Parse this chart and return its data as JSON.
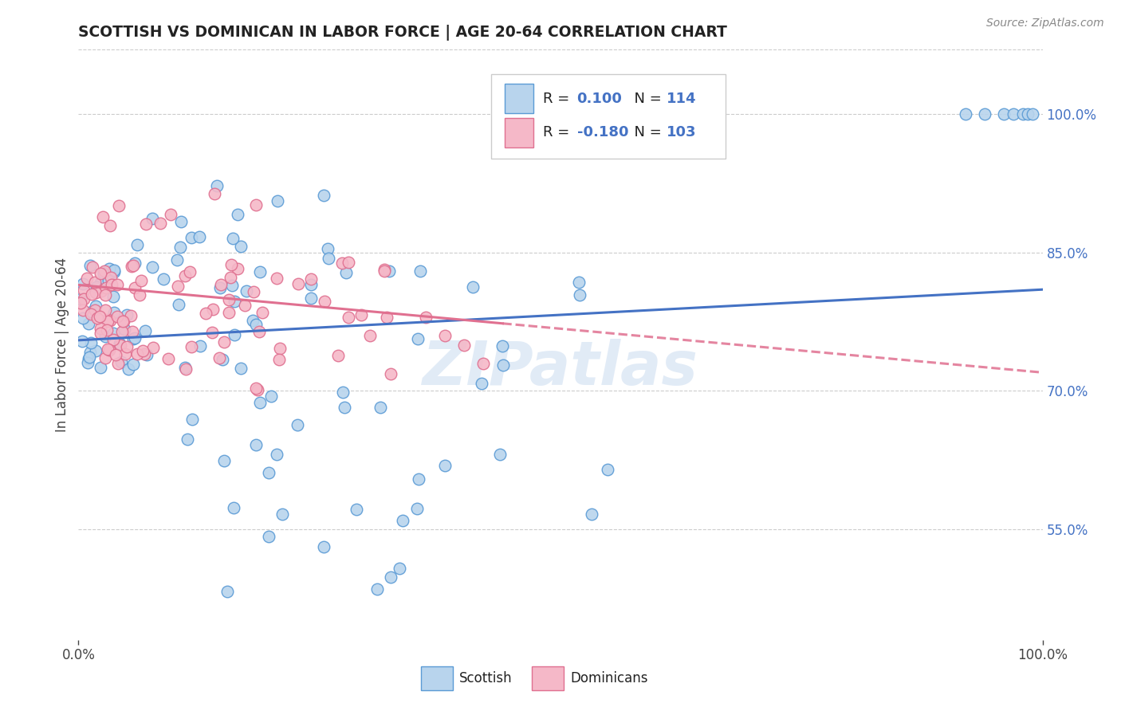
{
  "title": "SCOTTISH VS DOMINICAN IN LABOR FORCE | AGE 20-64 CORRELATION CHART",
  "source": "Source: ZipAtlas.com",
  "ylabel": "In Labor Force | Age 20-64",
  "legend_label1": "Scottish",
  "legend_label2": "Dominicans",
  "R1": 0.1,
  "N1": 114,
  "R2": -0.18,
  "N2": 103,
  "color_scottish_face": "#b8d4ed",
  "color_scottish_edge": "#5b9bd5",
  "color_dominican_face": "#f5b8c8",
  "color_dominican_edge": "#e07090",
  "color_scottish_line": "#4472c4",
  "color_dominican_line": "#e07090",
  "right_yticks": [
    0.55,
    0.7,
    0.85,
    1.0
  ],
  "right_yticklabels": [
    "55.0%",
    "70.0%",
    "85.0%",
    "100.0%"
  ],
  "xlim": [
    0.0,
    1.0
  ],
  "ylim": [
    0.43,
    1.07
  ],
  "watermark": "ZIPatlas",
  "bg_color": "#ffffff",
  "grid_color": "#cccccc",
  "title_color": "#222222",
  "source_color": "#888888",
  "tick_color": "#4472c4",
  "label_color": "#444444"
}
